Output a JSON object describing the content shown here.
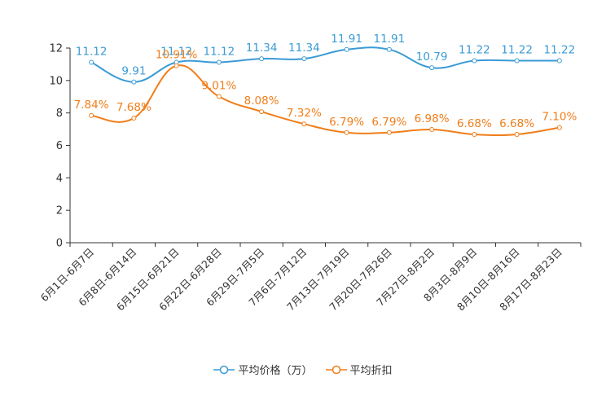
{
  "chart_data": {
    "type": "line",
    "title": "",
    "xlabel": "",
    "ylabel": "",
    "ylim": [
      0,
      12
    ],
    "yticks": [
      0,
      2,
      4,
      6,
      8,
      10,
      12
    ],
    "grid": false,
    "legend_position": "bottom",
    "categories": [
      "6月1日-6月7日",
      "6月8日-6月14日",
      "6月15日-6月21日",
      "6月22日-6月28日",
      "6月29日-7月5日",
      "7月6日-7月12日",
      "7月13日-7月19日",
      "7月20日-7月26日",
      "7月27日-8月2日",
      "8月3日-8月9日",
      "8月10日-8月16日",
      "8月17日-8月23日"
    ],
    "series": [
      {
        "name": "平均价格（万）",
        "color": "#3a9bd5",
        "values": [
          11.12,
          9.91,
          11.12,
          11.12,
          11.34,
          11.34,
          11.91,
          11.91,
          10.79,
          11.22,
          11.22,
          11.22
        ],
        "labels": [
          "11.12",
          "9.91",
          "11.12",
          "11.12",
          "11.34",
          "11.34",
          "11.91",
          "11.91",
          "10.79",
          "11.22",
          "11.22",
          "11.22"
        ]
      },
      {
        "name": "平均折扣",
        "color": "#f07e1a",
        "values": [
          7.84,
          7.68,
          10.91,
          9.01,
          8.08,
          7.32,
          6.79,
          6.79,
          6.98,
          6.68,
          6.68,
          7.1
        ],
        "labels": [
          "7.84%",
          "7.68%",
          "10.91%",
          "9.01%",
          "8.08%",
          "7.32%",
          "6.79%",
          "6.79%",
          "6.98%",
          "6.68%",
          "6.68%",
          "7.10%"
        ]
      }
    ]
  }
}
